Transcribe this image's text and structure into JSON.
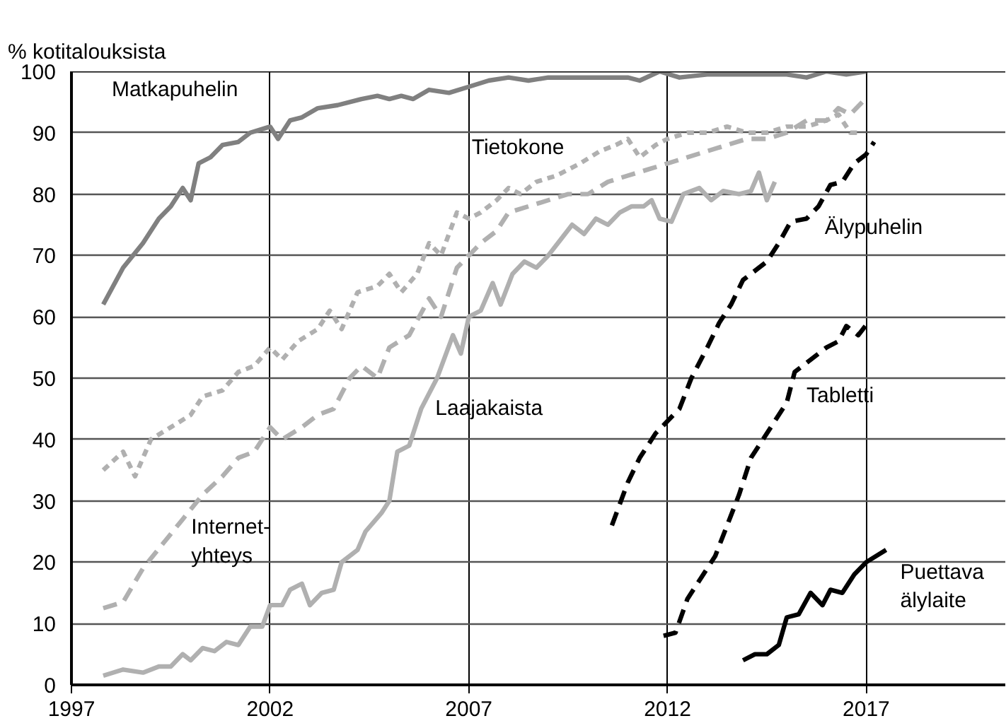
{
  "chart_data": {
    "type": "line",
    "ylabel": "% kotitalouksista",
    "xlim": [
      1997,
      2020.5
    ],
    "xticks": [
      1997,
      2002,
      2007,
      2012,
      2017
    ],
    "ylim": [
      0,
      100
    ],
    "yticks": [
      0,
      10,
      20,
      30,
      40,
      50,
      60,
      70,
      80,
      90,
      100
    ],
    "grid": true,
    "series": [
      {
        "name": "Matkapuhelin",
        "color": "#808080",
        "line_style": "solid",
        "x": [
          1997.8,
          1998.3,
          1998.8,
          1999.2,
          1999.5,
          1999.8,
          2000.0,
          2000.2,
          2000.5,
          2000.8,
          2001.2,
          2001.5,
          2002,
          2002.2,
          2002.5,
          2002.8,
          2003.2,
          2003.7,
          2004.3,
          2004.7,
          2005.0,
          2005.3,
          2005.6,
          2006,
          2006.5,
          2007,
          2007.5,
          2008,
          2008.5,
          2009,
          2010,
          2011,
          2011.3,
          2011.8,
          2012.3,
          2013,
          2014,
          2015,
          2015.5,
          2016,
          2016.5,
          2017
        ],
        "values": [
          62,
          68,
          72,
          76,
          78,
          81,
          79,
          85,
          86,
          88,
          88.5,
          90,
          91,
          89,
          92,
          92.5,
          94,
          94.5,
          95.5,
          96,
          95.5,
          96,
          95.5,
          97,
          96.5,
          97.5,
          98.5,
          99,
          98.5,
          99,
          99,
          99,
          98.5,
          100,
          99,
          99.5,
          99.5,
          99.5,
          99,
          100,
          99.5,
          100
        ]
      },
      {
        "name": "Tietokone",
        "color": "#b0b0b0",
        "line_style": "dotted",
        "x": [
          1997.8,
          1998.3,
          1998.6,
          1999,
          1999.5,
          2000,
          2000.3,
          2000.8,
          2001.2,
          2001.6,
          2002,
          2002.3,
          2002.7,
          2003.2,
          2003.5,
          2003.8,
          2004.2,
          2004.7,
          2005,
          2005.3,
          2005.7,
          2006,
          2006.3,
          2006.7,
          2007,
          2007.3,
          2007.7,
          2008,
          2008.3,
          2008.7,
          2009.2,
          2009.8,
          2010.3,
          2010.7,
          2011,
          2011.3,
          2011.7,
          2012,
          2012.5,
          2013,
          2013.5,
          2014,
          2014.5,
          2015,
          2015.5,
          2016,
          2016.3,
          2016.6,
          2016.9
        ],
        "values": [
          35,
          38,
          34,
          40,
          42,
          44,
          47,
          48,
          51,
          52,
          55,
          53,
          56,
          58,
          61,
          58,
          64,
          65,
          67,
          64,
          67,
          72,
          70,
          77,
          76,
          77,
          79,
          81,
          80,
          82,
          83,
          85,
          87,
          88,
          89,
          86,
          88,
          89,
          90,
          90,
          91,
          90,
          90,
          91,
          91,
          92,
          93,
          90,
          90
        ]
      },
      {
        "name": "Internet-\nyhteys",
        "color": "#b0b0b0",
        "line_style": "dashed",
        "x": [
          1997.8,
          1998.3,
          1998.8,
          1999.3,
          1999.8,
          2000.3,
          2000.8,
          2001.2,
          2001.6,
          2002,
          2002.3,
          2002.8,
          2003.2,
          2003.6,
          2004,
          2004.3,
          2004.7,
          2005,
          2005.5,
          2006,
          2006.3,
          2006.7,
          2007,
          2007.3,
          2007.7,
          2008,
          2008.5,
          2009,
          2009.5,
          2010,
          2010.5,
          2011,
          2011.5,
          2012,
          2012.5,
          2013,
          2013.5,
          2014,
          2014.5,
          2015,
          2015.5,
          2016,
          2016.3,
          2016.6,
          2016.9
        ],
        "values": [
          12.5,
          13.5,
          19,
          23,
          27,
          31,
          34,
          37,
          38,
          42,
          40,
          42,
          44,
          45,
          50,
          52,
          50,
          55,
          57,
          63,
          60,
          68,
          70,
          72,
          74,
          77,
          78,
          79,
          80,
          80,
          82,
          83,
          84,
          85,
          86,
          87,
          88,
          89,
          89,
          90,
          92,
          92,
          94,
          93,
          95
        ]
      },
      {
        "name": "Laajakaista",
        "color": "#b0b0b0",
        "line_style": "solid",
        "x": [
          1997.8,
          1998.3,
          1998.8,
          1999.2,
          1999.5,
          1999.8,
          2000,
          2000.3,
          2000.6,
          2000.9,
          2001.2,
          2001.5,
          2001.8,
          2002,
          2002.3,
          2002.5,
          2002.8,
          2003,
          2003.3,
          2003.6,
          2003.8,
          2004.2,
          2004.4,
          2004.8,
          2005,
          2005.2,
          2005.5,
          2005.8,
          2006.2,
          2006.6,
          2006.8,
          2007,
          2007.3,
          2007.6,
          2007.8,
          2008.1,
          2008.4,
          2008.7,
          2009,
          2009.3,
          2009.6,
          2009.9,
          2010.2,
          2010.5,
          2010.8,
          2011.1,
          2011.4,
          2011.6,
          2011.8,
          2012.1,
          2012.4,
          2012.8,
          2013.1,
          2013.4,
          2013.8,
          2014.1,
          2014.3,
          2014.5,
          2014.7
        ],
        "values": [
          1.5,
          2.5,
          2,
          3,
          3,
          5,
          4,
          6,
          5.5,
          7,
          6.5,
          9.5,
          9.5,
          13,
          13,
          15.5,
          16.5,
          13,
          15,
          15.5,
          20,
          22,
          25,
          28,
          30,
          38,
          39,
          45,
          50,
          57,
          54,
          60,
          61,
          65.5,
          62,
          67,
          69,
          68,
          70,
          72.5,
          75,
          73.5,
          76,
          75,
          77,
          78,
          78,
          79,
          76,
          75.5,
          80,
          81,
          79,
          80.5,
          80,
          80.5,
          83.5,
          79,
          82
        ]
      },
      {
        "name": "Älypuhelin",
        "color": "#000000",
        "line_style": "dashed",
        "x": [
          2010.6,
          2011,
          2011.3,
          2011.7,
          2012,
          2012.3,
          2012.6,
          2013,
          2013.3,
          2013.6,
          2013.9,
          2014.2,
          2014.5,
          2014.8,
          2015.1,
          2015.5,
          2015.8,
          2016.1,
          2016.4,
          2016.7,
          2017,
          2017.2
        ],
        "values": [
          26,
          33,
          37,
          41,
          43,
          45,
          50,
          55,
          59,
          62,
          66,
          67.5,
          69,
          72,
          75.5,
          76,
          78,
          81.5,
          82,
          85,
          86.5,
          88.5
        ]
      },
      {
        "name": "Tabletti",
        "color": "#000000",
        "line_style": "dashed",
        "x": [
          2011.9,
          2012.2,
          2012.5,
          2012.8,
          2013.2,
          2013.5,
          2013.8,
          2014.1,
          2014.4,
          2014.7,
          2015,
          2015.2,
          2015.6,
          2016,
          2016.3,
          2016.5,
          2016.8,
          2017.1
        ],
        "values": [
          8,
          8.5,
          14,
          17,
          21,
          26,
          31,
          37,
          40,
          43,
          46,
          51,
          53,
          55,
          56,
          58.5,
          57,
          59.5
        ]
      },
      {
        "name": "Puettava\nälylaite",
        "color": "#000000",
        "line_style": "solid",
        "x": [
          2013.9,
          2014.2,
          2014.5,
          2014.8,
          2015,
          2015.3,
          2015.6,
          2015.9,
          2016.1,
          2016.4,
          2016.7,
          2017,
          2017.5
        ],
        "values": [
          4,
          5,
          5,
          6.5,
          11,
          11.5,
          15,
          13,
          15.5,
          15,
          18,
          20,
          22
        ]
      }
    ]
  }
}
